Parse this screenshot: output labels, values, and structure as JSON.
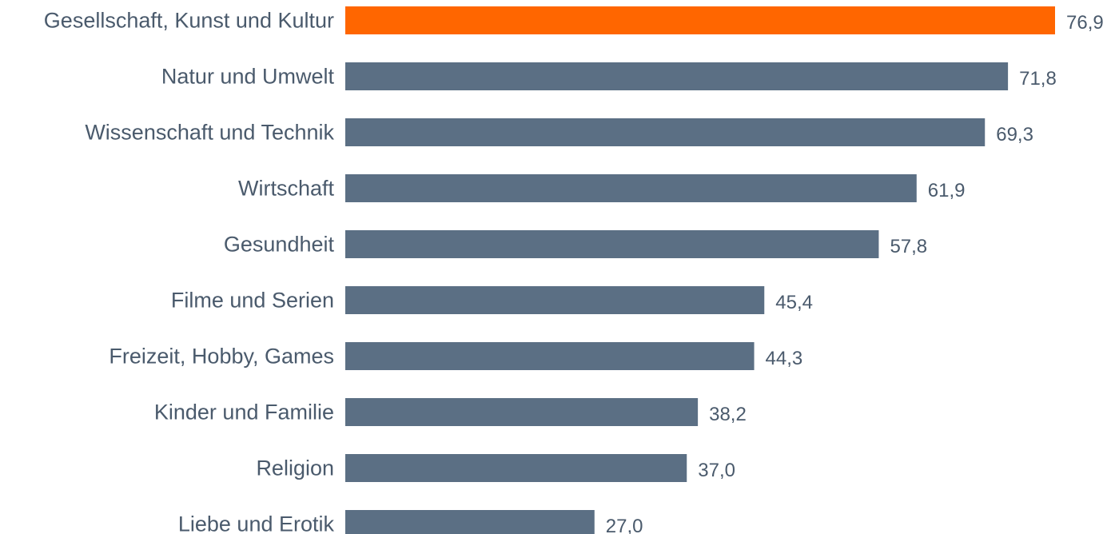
{
  "chart_data": {
    "type": "bar",
    "orientation": "horizontal",
    "title": "",
    "xlabel": "",
    "ylabel": "",
    "grid": false,
    "categories": [
      "Gesellschaft, Kunst und Kultur",
      "Natur und Umwelt",
      "Wissenschaft und Technik",
      "Wirtschaft",
      "Gesundheit",
      "Filme und Serien",
      "Freizeit, Hobby, Games",
      "Kinder und Familie",
      "Religion",
      "Liebe und Erotik"
    ],
    "values": [
      76.9,
      71.8,
      69.3,
      61.9,
      57.8,
      45.4,
      44.3,
      38.2,
      37.0,
      27.0
    ],
    "value_labels": [
      "76,9",
      "71,8",
      "69,3",
      "61,9",
      "57,8",
      "45,4",
      "44,3",
      "38,2",
      "37,0",
      "27,0"
    ],
    "highlight_index": 0,
    "colors": {
      "highlight": "#ff6600",
      "bar": "#5b6f84",
      "text": "#4a5a6c"
    }
  }
}
